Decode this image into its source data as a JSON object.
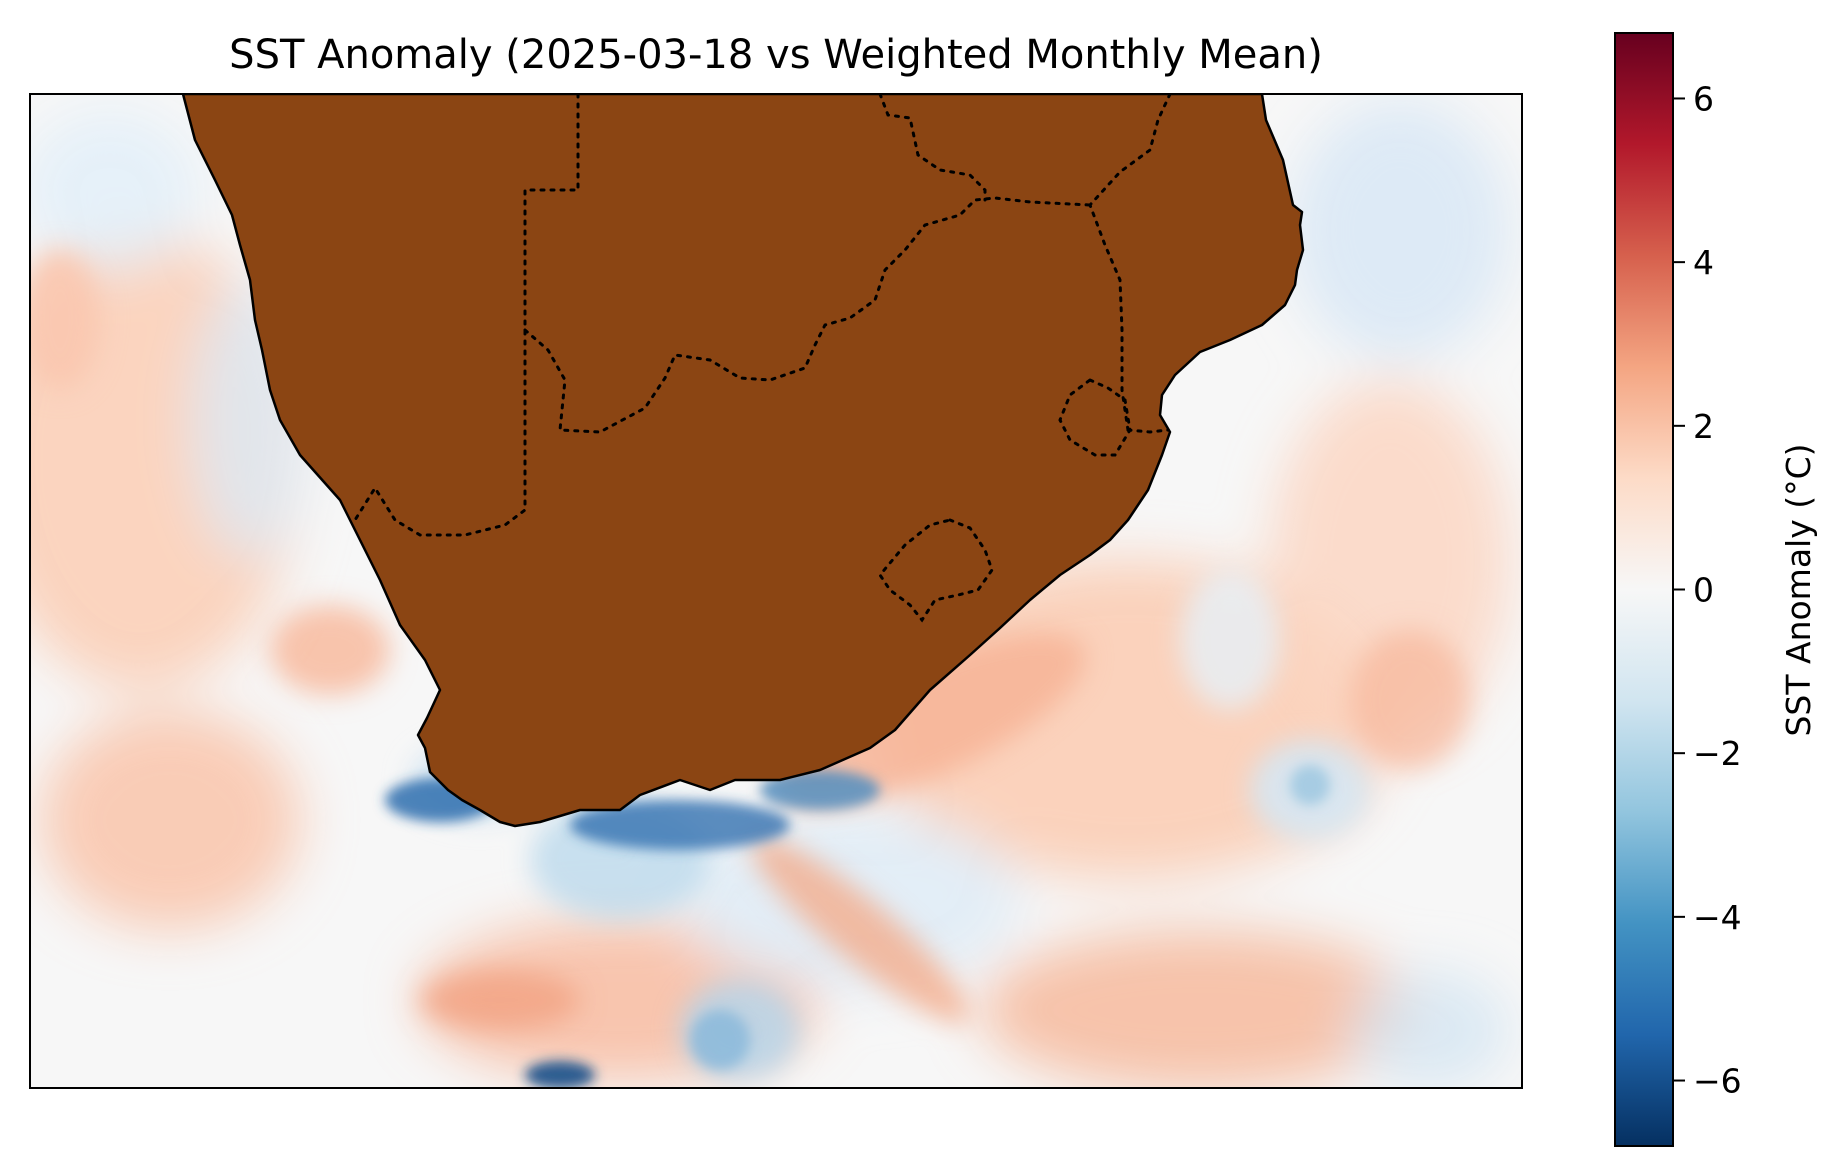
{
  "title": "SST Anomaly (2025-03-18 vs Weighted Monthly Mean)",
  "colorbar": {
    "label": "SST Anomaly (°C)",
    "min": -6.8,
    "max": 6.8,
    "ticks": [
      {
        "value": 6,
        "label": "6"
      },
      {
        "value": 4,
        "label": "4"
      },
      {
        "value": 2,
        "label": "2"
      },
      {
        "value": 0,
        "label": "0"
      },
      {
        "value": -2,
        "label": "−2"
      },
      {
        "value": -4,
        "label": "−4"
      },
      {
        "value": -6,
        "label": "−6"
      }
    ],
    "colormap": "RdBu_r",
    "colors": [
      "#053061",
      "#2166ac",
      "#4393c3",
      "#92c5de",
      "#d1e5f0",
      "#f7f7f7",
      "#fddbc7",
      "#f4a582",
      "#d6604d",
      "#b2182b",
      "#67001f"
    ]
  },
  "map": {
    "land_color": "#8b4513",
    "coastline_color": "#000000",
    "border_style": "dotted",
    "ocean_neutral_color": "#f7f7f7"
  }
}
